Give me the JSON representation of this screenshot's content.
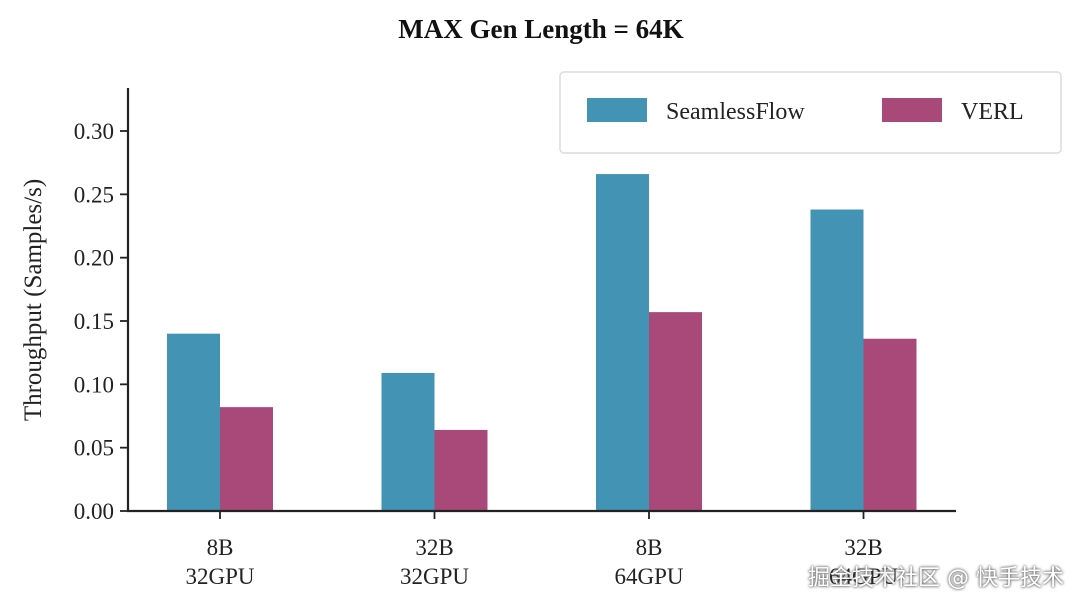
{
  "chart_data": {
    "type": "bar",
    "title": "MAX Gen Length = 64K",
    "xlabel": "",
    "ylabel": "Throughput (Samples/s)",
    "ylim": [
      0,
      0.33
    ],
    "yticks": [
      "0.00",
      "0.05",
      "0.10",
      "0.15",
      "0.20",
      "0.25",
      "0.30"
    ],
    "categories": [
      [
        "8B",
        "32GPU"
      ],
      [
        "32B",
        "32GPU"
      ],
      [
        "8B",
        "64GPU"
      ],
      [
        "32B",
        "64GPU"
      ]
    ],
    "series": [
      {
        "name": "SeamlessFlow",
        "color": "#4393b4",
        "values": [
          0.14,
          0.109,
          0.266,
          0.238
        ]
      },
      {
        "name": "VERL",
        "color": "#a9497a",
        "values": [
          0.082,
          0.064,
          0.157,
          0.136
        ]
      }
    ],
    "legend": "top-right",
    "grid": false
  },
  "watermark": "掘金技术社区 @ 快手技术"
}
